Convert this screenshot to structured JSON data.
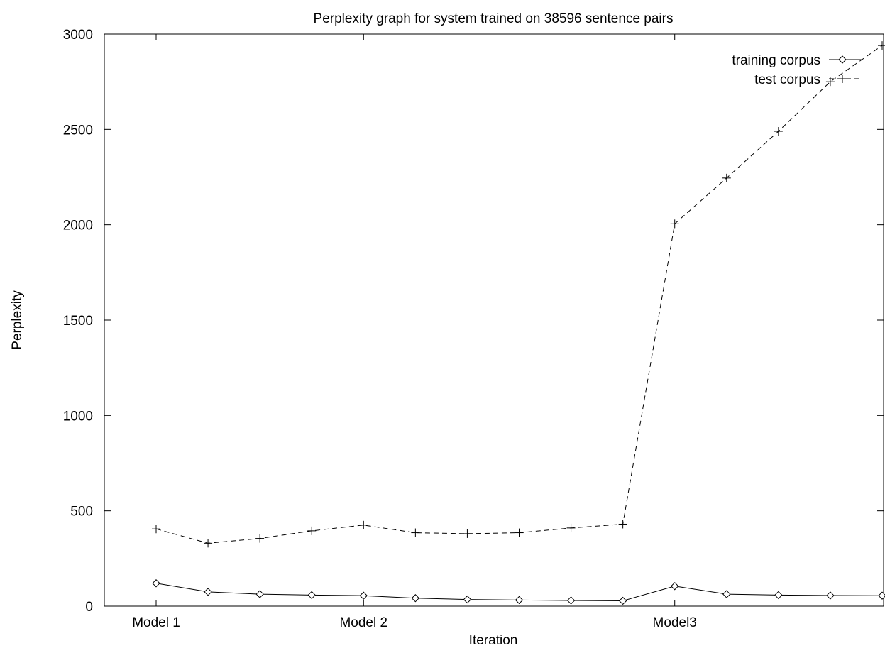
{
  "chart_data": {
    "type": "line",
    "title": "Perplexity graph for system trained on 38596 sentence pairs",
    "xlabel": "Iteration",
    "ylabel": "Perplexity",
    "xlim": [
      0,
      15
    ],
    "ylim": [
      0,
      3000
    ],
    "yticks": [
      0,
      500,
      1000,
      1500,
      2000,
      2500,
      3000
    ],
    "xtick_labels": [
      {
        "x": 1,
        "label": "Model 1"
      },
      {
        "x": 5,
        "label": "Model 2"
      },
      {
        "x": 11,
        "label": "Model3"
      }
    ],
    "grid": false,
    "legend_position": "top-right",
    "series": [
      {
        "name": "training corpus",
        "line_style": "solid",
        "marker": "diamond",
        "color": "#000000",
        "x": [
          1,
          2,
          3,
          4,
          5,
          6,
          7,
          8,
          9,
          10,
          11,
          12,
          13,
          14,
          15
        ],
        "values": [
          120,
          75,
          63,
          58,
          55,
          42,
          35,
          32,
          30,
          28,
          105,
          63,
          58,
          56,
          55
        ]
      },
      {
        "name": "test corpus",
        "line_style": "dashed",
        "marker": "plus",
        "color": "#000000",
        "x": [
          1,
          2,
          3,
          4,
          5,
          6,
          7,
          8,
          9,
          10,
          11,
          12,
          13,
          14,
          15
        ],
        "values": [
          405,
          330,
          355,
          395,
          425,
          385,
          380,
          385,
          410,
          430,
          2005,
          2245,
          2490,
          2750,
          2940
        ]
      }
    ]
  }
}
